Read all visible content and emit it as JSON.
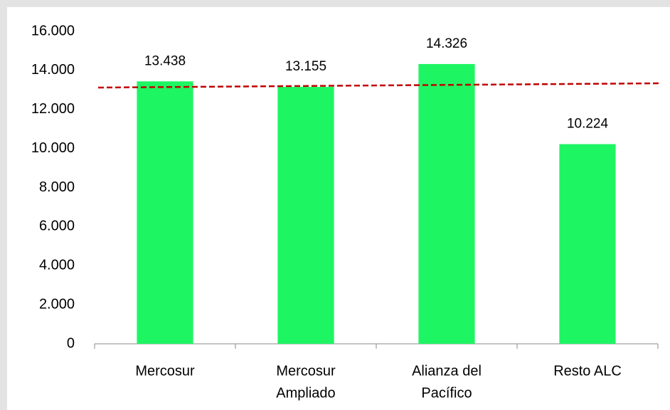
{
  "chart_data": {
    "type": "bar",
    "categories": [
      [
        "Mercosur"
      ],
      [
        "Mercosur",
        "Ampliado"
      ],
      [
        "Alianza del",
        "Pacífico"
      ],
      [
        "Resto ALC"
      ]
    ],
    "values": [
      13438,
      13155,
      14326,
      10224
    ],
    "value_labels": [
      "13.438",
      "13.155",
      "14.326",
      "10.224"
    ],
    "color": "#1ef563",
    "ylim": [
      0,
      16000
    ],
    "yticks": [
      0,
      {
        "value": 2000,
        "label": "2.000"
      },
      {
        "value": 4000,
        "label": "4.000"
      },
      {
        "value": 6000,
        "label": "6.000"
      },
      {
        "value": 8000,
        "label": "8.000"
      },
      {
        "value": 10000,
        "label": "10.000"
      },
      {
        "value": 12000,
        "label": "12.000"
      },
      {
        "value": 14000,
        "label": "14.000"
      },
      {
        "value": 16000,
        "label": "16.000"
      }
    ],
    "grid": false,
    "trend_line": {
      "start": 13120,
      "end": 13340,
      "color": "#c00000",
      "dashed": true
    }
  }
}
